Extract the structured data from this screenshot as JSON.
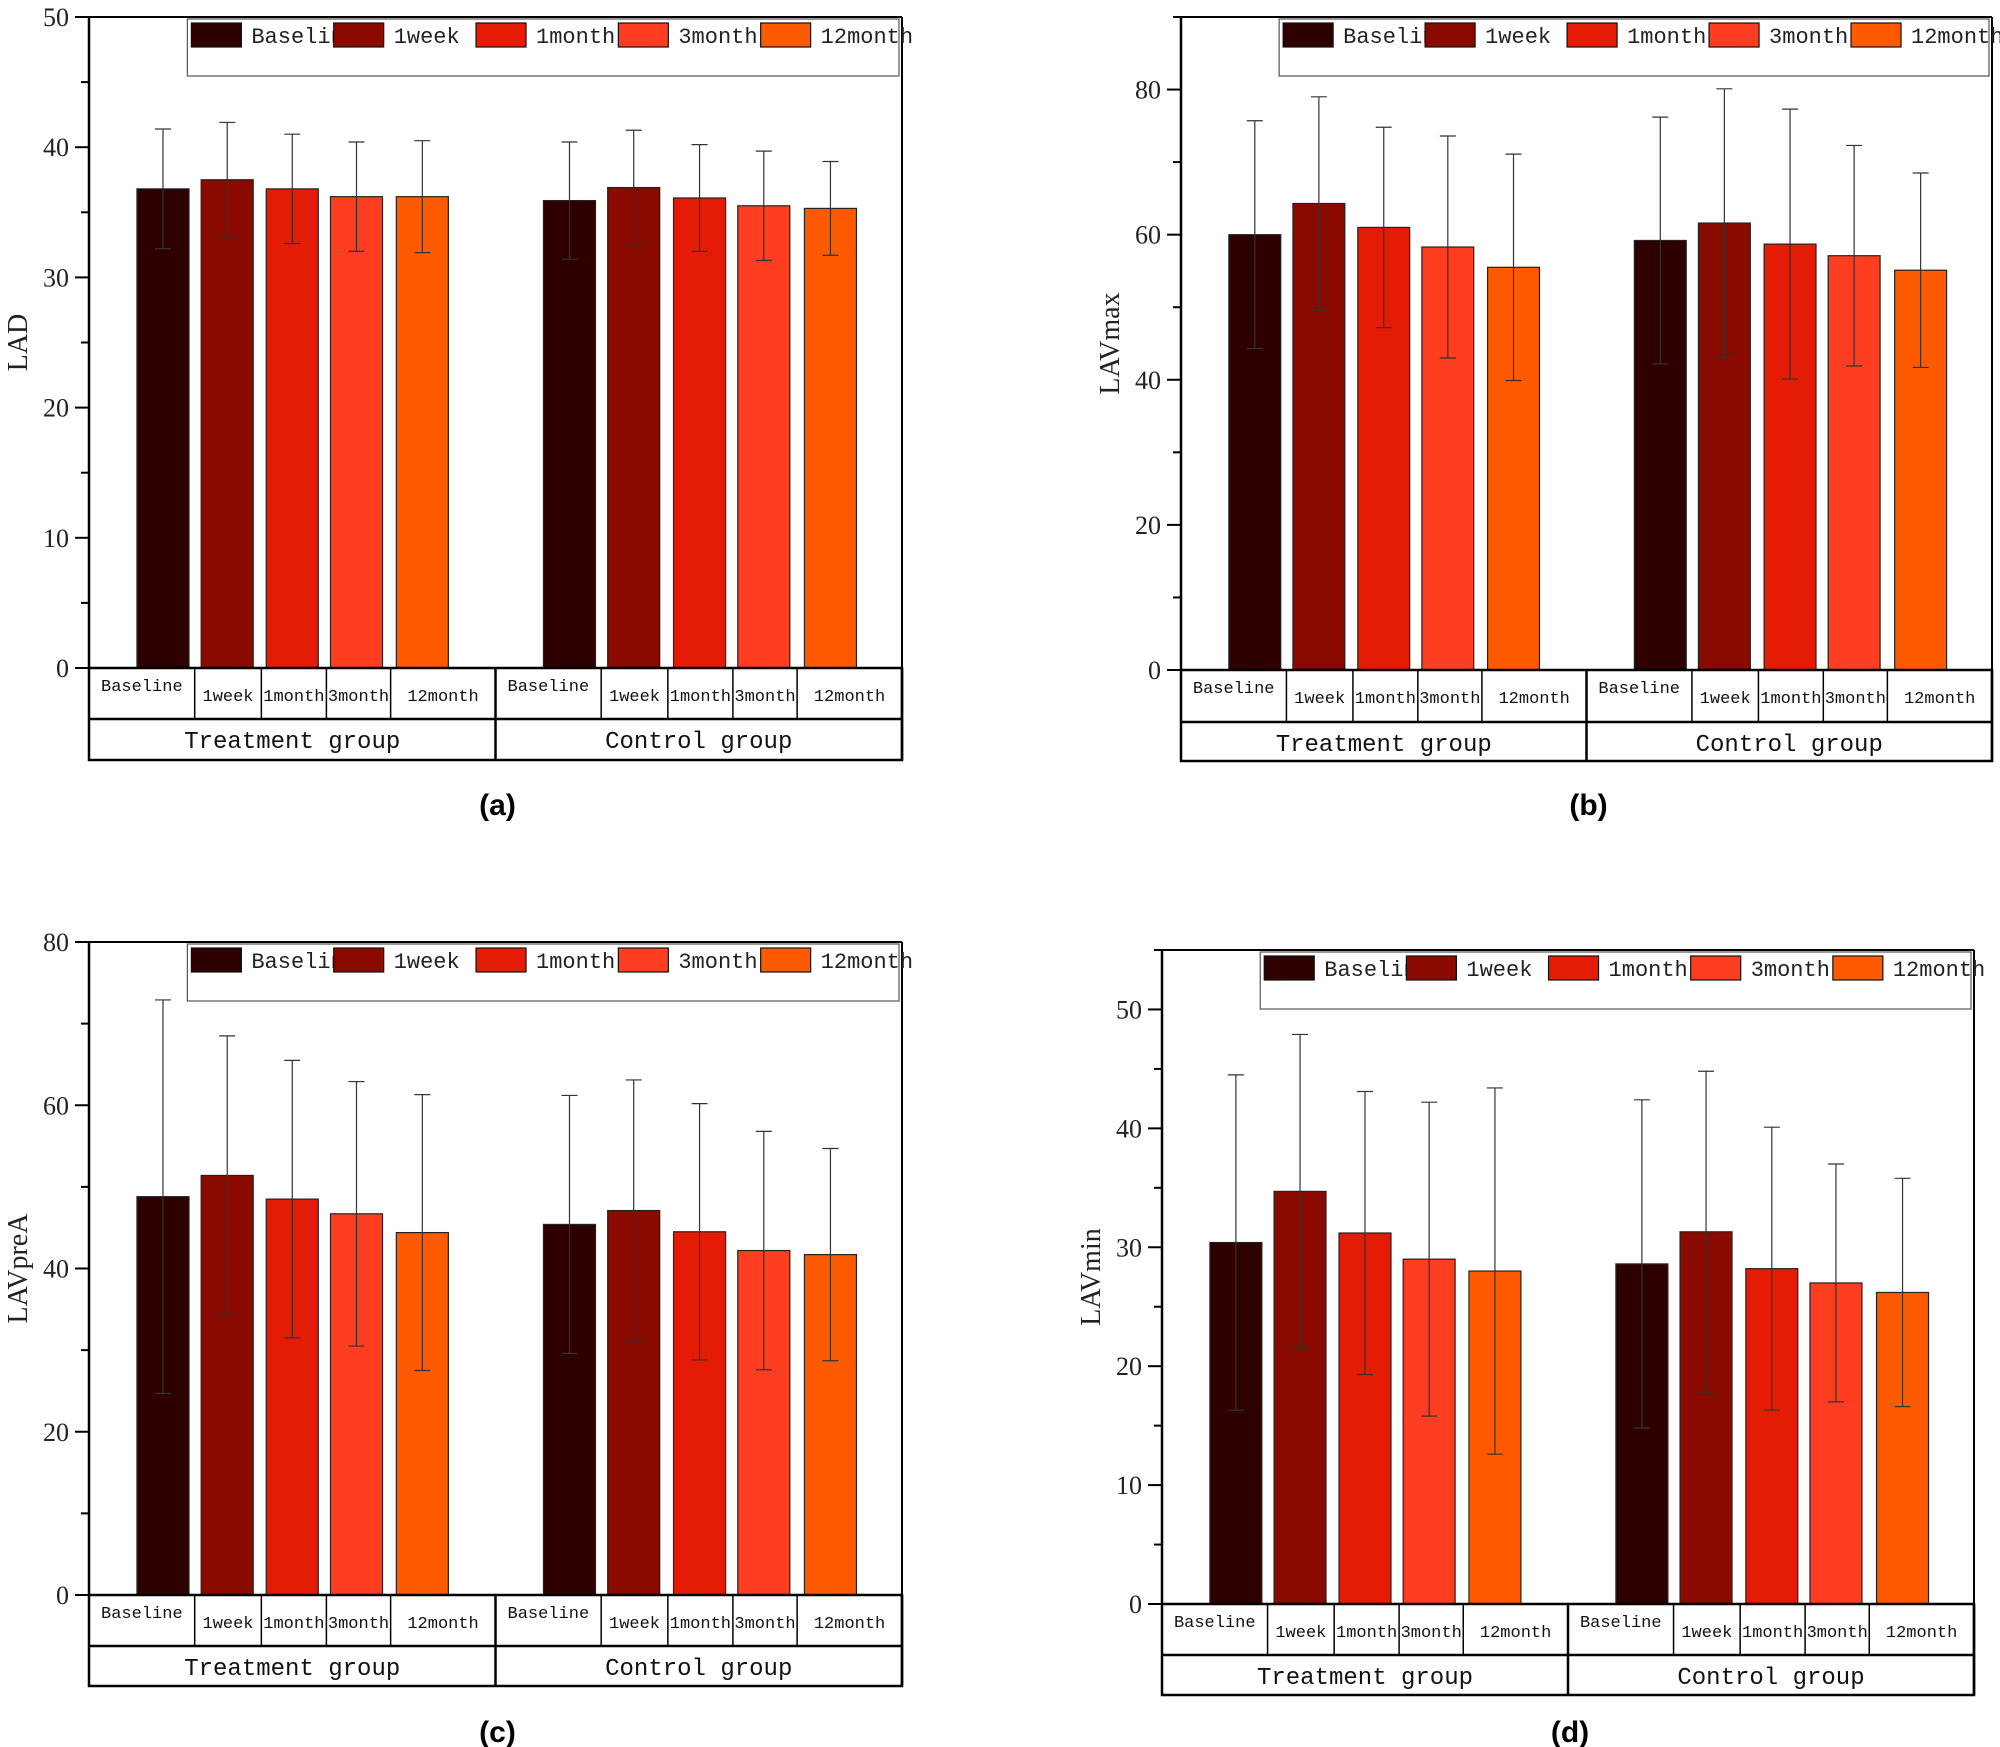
{
  "chart_data": [
    {
      "type": "bar",
      "panel_label": "(a)",
      "ylabel": "LAD",
      "ylim": [
        0,
        50
      ],
      "ymajor": 10,
      "yminor": 5,
      "groups": [
        "Treatment group",
        "Control group"
      ],
      "categories": [
        "Baseline",
        "1week",
        "1month",
        "3month",
        "12month"
      ],
      "legend": [
        "Baseline",
        "1week",
        "1month",
        "3month",
        "12month"
      ],
      "legend_position": "top-right",
      "series": [
        {
          "group": "Treatment group",
          "values": [
            36.8,
            37.5,
            36.8,
            36.2,
            36.2
          ],
          "errors": [
            4.6,
            4.4,
            4.2,
            4.2,
            4.3
          ]
        },
        {
          "group": "Control group",
          "values": [
            35.9,
            36.9,
            36.1,
            35.5,
            35.3
          ],
          "errors": [
            4.5,
            4.4,
            4.1,
            4.2,
            3.6
          ]
        }
      ]
    },
    {
      "type": "bar",
      "panel_label": "(b)",
      "ylabel": "LAVmax",
      "ylim": [
        0,
        90
      ],
      "ymajor": 20,
      "yminor": 10,
      "groups": [
        "Treatment group",
        "Control group"
      ],
      "categories": [
        "Baseline",
        "1week",
        "1month",
        "3month",
        "12month"
      ],
      "legend": [
        "Baseline",
        "1week",
        "1month",
        "3month",
        "12month"
      ],
      "legend_position": "top-right",
      "series": [
        {
          "group": "Treatment group",
          "values": [
            60.0,
            64.3,
            61.0,
            58.3,
            55.5
          ],
          "errors": [
            15.7,
            14.7,
            13.8,
            15.3,
            15.6
          ]
        },
        {
          "group": "Control group",
          "values": [
            59.2,
            61.6,
            58.7,
            57.1,
            55.1
          ],
          "errors": [
            17.0,
            18.5,
            18.6,
            15.2,
            13.4
          ]
        }
      ]
    },
    {
      "type": "bar",
      "panel_label": "(c)",
      "ylabel": "LAVpreA",
      "ylim": [
        0,
        80
      ],
      "ymajor": 20,
      "yminor": 10,
      "groups": [
        "Treatment group",
        "Control group"
      ],
      "categories": [
        "Baseline",
        "1week",
        "1month",
        "3month",
        "12month"
      ],
      "legend": [
        "Baseline",
        "1week",
        "1month",
        "3month",
        "12month"
      ],
      "legend_position": "top-right",
      "series": [
        {
          "group": "Treatment group",
          "values": [
            48.8,
            51.4,
            48.5,
            46.7,
            44.4
          ],
          "errors": [
            24.1,
            17.1,
            17.0,
            16.2,
            16.9
          ]
        },
        {
          "group": "Control group",
          "values": [
            45.4,
            47.1,
            44.5,
            42.2,
            41.7
          ],
          "errors": [
            15.8,
            16.0,
            15.7,
            14.6,
            13.0
          ]
        }
      ]
    },
    {
      "type": "bar",
      "panel_label": "(d)",
      "ylabel": "LAVmin",
      "ylim": [
        0,
        55
      ],
      "ymajor": 10,
      "yminor": 5,
      "groups": [
        "Treatment group",
        "Control group"
      ],
      "categories": [
        "Baseline",
        "1week",
        "1month",
        "3month",
        "12month"
      ],
      "legend": [
        "Baseline",
        "1week",
        "1month",
        "3month",
        "12month"
      ],
      "legend_position": "top-right",
      "series": [
        {
          "group": "Treatment group",
          "values": [
            30.4,
            34.7,
            31.2,
            29.0,
            28.0
          ],
          "errors": [
            14.1,
            13.2,
            11.9,
            13.2,
            15.4
          ]
        },
        {
          "group": "Control group",
          "values": [
            28.6,
            31.3,
            28.2,
            27.0,
            26.2
          ],
          "errors": [
            13.8,
            13.5,
            11.9,
            10.0,
            9.6
          ]
        }
      ]
    }
  ],
  "colors": [
    "#2e0000",
    "#8b0a00",
    "#e51c05",
    "#ff3d21",
    "#ff5a00"
  ]
}
